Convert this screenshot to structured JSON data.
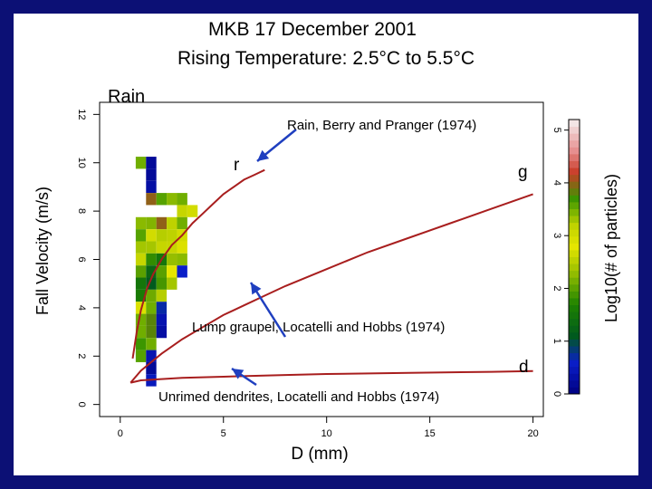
{
  "title_line1": "MKB 17 December 2001",
  "title_line2": "Rising Temperature:  2.5°C to 5.5°C",
  "colors": {
    "background": "#0c1075",
    "curve": "#a81e1e",
    "arrow": "#1f3fbf"
  },
  "chart_data": {
    "type": "heatmap",
    "xlabel": "D (mm)",
    "ylabel": "Fall Velocity (m/s)",
    "xlim": [
      -1,
      20.5
    ],
    "ylim": [
      -0.5,
      12.5
    ],
    "x_ticks": [
      0,
      5,
      10,
      15,
      20
    ],
    "y_ticks": [
      0,
      2,
      4,
      6,
      8,
      10,
      12
    ],
    "colorbar": {
      "label": "Log10(# of particles)",
      "ticks": [
        0,
        1,
        2,
        3,
        4,
        5
      ],
      "range": [
        0,
        5.2
      ]
    },
    "series": [
      {
        "name": "Rain, Berry and Pranger (1974)",
        "label": "r",
        "points": [
          [
            0.6,
            1.9
          ],
          [
            0.8,
            3.0
          ],
          [
            1.0,
            3.9
          ],
          [
            1.3,
            4.8
          ],
          [
            1.6,
            5.4
          ],
          [
            2.0,
            6.0
          ],
          [
            2.5,
            6.6
          ],
          [
            3.0,
            7.0
          ],
          [
            3.5,
            7.5
          ],
          [
            4.0,
            7.9
          ],
          [
            4.5,
            8.3
          ],
          [
            5.0,
            8.7
          ],
          [
            5.5,
            9.0
          ],
          [
            6.0,
            9.3
          ],
          [
            6.5,
            9.5
          ],
          [
            7.0,
            9.7
          ]
        ]
      },
      {
        "name": "Lump graupel, Locatelli and Hobbs (1974)",
        "label": "g",
        "points": [
          [
            0.5,
            0.9
          ],
          [
            1,
            1.4
          ],
          [
            2,
            2.1
          ],
          [
            3,
            2.7
          ],
          [
            4,
            3.2
          ],
          [
            5,
            3.7
          ],
          [
            6,
            4.1
          ],
          [
            7,
            4.5
          ],
          [
            8,
            4.9
          ],
          [
            10,
            5.6
          ],
          [
            12,
            6.3
          ],
          [
            14,
            6.9
          ],
          [
            16,
            7.5
          ],
          [
            18,
            8.1
          ],
          [
            20,
            8.7
          ]
        ]
      },
      {
        "name": "Unrimed dendrites, Locatelli and Hobbs (1974)",
        "label": "d",
        "points": [
          [
            0.5,
            0.9
          ],
          [
            1,
            1.0
          ],
          [
            2,
            1.05
          ],
          [
            3,
            1.1
          ],
          [
            5,
            1.15
          ],
          [
            8,
            1.22
          ],
          [
            10,
            1.26
          ],
          [
            14,
            1.31
          ],
          [
            18,
            1.35
          ],
          [
            20,
            1.38
          ]
        ]
      }
    ],
    "annotations": {
      "rain_label": "Rain",
      "rain_text": "Rain,  Berry and Pranger (1974)",
      "graupel_text": "Lump graupel, Locatelli and Hobbs (1974)",
      "dendrite_text": "Unrimed dendrites, Locatelli and Hobbs (1974)"
    },
    "heatmap_cells": [
      {
        "d": 1.0,
        "v": 10.0,
        "c": 3.5
      },
      {
        "d": 1.5,
        "v": 10.0,
        "c": 0.2
      },
      {
        "d": 1.5,
        "v": 9.5,
        "c": 0.2
      },
      {
        "d": 1.5,
        "v": 9.0,
        "c": 0.3
      },
      {
        "d": 1.5,
        "v": 8.5,
        "c": 4.0
      },
      {
        "d": 2.0,
        "v": 8.5,
        "c": 3.6
      },
      {
        "d": 2.5,
        "v": 8.5,
        "c": 3.4
      },
      {
        "d": 3.0,
        "v": 8.5,
        "c": 3.5
      },
      {
        "d": 3.0,
        "v": 8.0,
        "c": 2.6
      },
      {
        "d": 3.5,
        "v": 8.0,
        "c": 3.0
      },
      {
        "d": 1.0,
        "v": 7.5,
        "c": 3.4
      },
      {
        "d": 1.5,
        "v": 7.5,
        "c": 2.2
      },
      {
        "d": 2.0,
        "v": 7.5,
        "c": 4.0
      },
      {
        "d": 2.5,
        "v": 7.5,
        "c": 3.2
      },
      {
        "d": 3.0,
        "v": 7.5,
        "c": 3.5
      },
      {
        "d": 1.0,
        "v": 7.0,
        "c": 3.6
      },
      {
        "d": 1.5,
        "v": 7.0,
        "c": 3.0
      },
      {
        "d": 2.0,
        "v": 7.0,
        "c": 2.5
      },
      {
        "d": 2.5,
        "v": 7.0,
        "c": 3.2
      },
      {
        "d": 3.0,
        "v": 7.0,
        "c": 3.0
      },
      {
        "d": 1.0,
        "v": 6.5,
        "c": 3.3
      },
      {
        "d": 1.5,
        "v": 6.5,
        "c": 2.4
      },
      {
        "d": 2.0,
        "v": 6.5,
        "c": 2.6
      },
      {
        "d": 2.5,
        "v": 6.5,
        "c": 2.6
      },
      {
        "d": 3.0,
        "v": 6.5,
        "c": 2.9
      },
      {
        "d": 1.0,
        "v": 6.0,
        "c": 2.6
      },
      {
        "d": 1.5,
        "v": 6.0,
        "c": 1.8
      },
      {
        "d": 2.0,
        "v": 6.0,
        "c": 1.5
      },
      {
        "d": 2.5,
        "v": 6.0,
        "c": 2.3
      },
      {
        "d": 3.0,
        "v": 6.0,
        "c": 3.4
      },
      {
        "d": 1.0,
        "v": 5.5,
        "c": 2.0
      },
      {
        "d": 1.5,
        "v": 5.5,
        "c": 1.3
      },
      {
        "d": 2.0,
        "v": 5.5,
        "c": 2.0
      },
      {
        "d": 2.5,
        "v": 5.5,
        "c": 2.8
      },
      {
        "d": 3.0,
        "v": 5.5,
        "c": 0.6
      },
      {
        "d": 1.0,
        "v": 5.0,
        "c": 1.5
      },
      {
        "d": 1.5,
        "v": 5.0,
        "c": 1.1
      },
      {
        "d": 2.0,
        "v": 5.0,
        "c": 1.9
      },
      {
        "d": 2.5,
        "v": 5.0,
        "c": 3.3
      },
      {
        "d": 1.0,
        "v": 4.5,
        "c": 1.6
      },
      {
        "d": 1.5,
        "v": 4.5,
        "c": 2.1
      },
      {
        "d": 2.0,
        "v": 4.5,
        "c": 2.5
      },
      {
        "d": 1.0,
        "v": 4.0,
        "c": 2.9
      },
      {
        "d": 1.5,
        "v": 4.0,
        "c": 3.5
      },
      {
        "d": 2.0,
        "v": 4.0,
        "c": 0.7
      },
      {
        "d": 1.0,
        "v": 3.5,
        "c": 3.5
      },
      {
        "d": 1.5,
        "v": 3.5,
        "c": 3.8
      },
      {
        "d": 2.0,
        "v": 3.5,
        "c": 0.4
      },
      {
        "d": 1.0,
        "v": 3.0,
        "c": 3.5
      },
      {
        "d": 1.5,
        "v": 3.0,
        "c": 3.8
      },
      {
        "d": 2.0,
        "v": 3.0,
        "c": 0.3
      },
      {
        "d": 1.0,
        "v": 2.5,
        "c": 3.7
      },
      {
        "d": 1.5,
        "v": 2.5,
        "c": 3.5
      },
      {
        "d": 1.0,
        "v": 2.0,
        "c": 3.6
      },
      {
        "d": 1.5,
        "v": 2.0,
        "c": 0.4
      },
      {
        "d": 1.5,
        "v": 1.5,
        "c": 0.2
      },
      {
        "d": 1.5,
        "v": 1.0,
        "c": 0.5
      }
    ]
  }
}
